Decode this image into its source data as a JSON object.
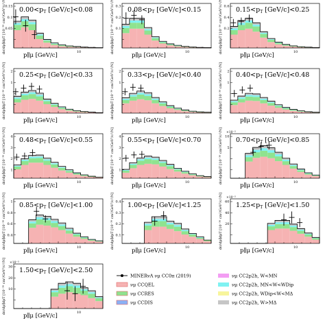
{
  "colors": {
    "ccqel": "#f6b3b3",
    "ccqel_edge": "#e87e7e",
    "ccres": "#8fe38f",
    "ccdis": "#8ab1f5",
    "twop_low": "#f39df3",
    "twop_mid": "#7ff2f2",
    "twop_delta": "#f7f59c",
    "twop_high": "#c6c6c6",
    "total": "#000000"
  },
  "chart_data": [
    {
      "type": "bar",
      "range": "0.00<p_T^μ [GeV/c]<0.08",
      "range_lo": "0.00",
      "range_hi": "0.08",
      "ylim": [
        0,
        0.15
      ],
      "yticks": [
        "0.15",
        "0.1",
        "0.05",
        ""
      ],
      "sci_exponent": "",
      "y_label": "dσ/dp∥dpT [10⁻³⁸ cm²/GeV²/c²/N]",
      "x_label": "p∥μ [GeV/c]",
      "x_tick_label": "10",
      "stacks": {
        "ccqel": [
          0.06,
          0.07,
          0.06,
          0.03,
          0.018,
          0.01,
          0.006,
          0.004,
          0.003,
          0.002,
          0.001,
          0.001
        ],
        "ccres": [
          0.018,
          0.02,
          0.02,
          0.012,
          0.007,
          0.004,
          0.003,
          0.002,
          0.001,
          0.001,
          0.001,
          0
        ],
        "twop": [
          0.012,
          0.015,
          0.014,
          0.008,
          0.004,
          0.003,
          0.002,
          0.001,
          0.001,
          0,
          0,
          0
        ]
      },
      "points": [
        {
          "x": 0.2,
          "y": 0.105,
          "e": 0.025
        },
        {
          "x": 1.2,
          "y": 0.075,
          "e": 0.02
        },
        {
          "x": 2.1,
          "y": 0.045,
          "e": 0.015
        }
      ]
    },
    {
      "type": "bar",
      "range": "0.08<p_T^μ [GeV/c]<0.15",
      "range_lo": "0.08",
      "range_hi": "0.15",
      "ylim": [
        0,
        0.3
      ],
      "yticks": [
        "0.3",
        "0.2",
        "0.1",
        ""
      ],
      "sci_exponent": "",
      "y_label": "dσ/dp∥dpT [10⁻³⁸ cm²/GeV²/c²/N]",
      "x_label": "p∥μ [GeV/c]",
      "x_tick_label": "10",
      "stacks": {
        "ccqel": [
          0.1,
          0.13,
          0.13,
          0.09,
          0.05,
          0.03,
          0.018,
          0.011,
          0.007,
          0.004,
          0.003,
          0.002
        ],
        "ccres": [
          0.035,
          0.04,
          0.04,
          0.028,
          0.016,
          0.009,
          0.006,
          0.004,
          0.002,
          0.002,
          0.001,
          0.001
        ],
        "twop": [
          0.025,
          0.03,
          0.03,
          0.02,
          0.01,
          0.006,
          0.004,
          0.003,
          0.002,
          0.001,
          0,
          0
        ]
      },
      "points": [
        {
          "x": 0.4,
          "y": 0.2,
          "e": 0.04
        },
        {
          "x": 1.2,
          "y": 0.22,
          "e": 0.035
        },
        {
          "x": 2.0,
          "y": 0.19,
          "e": 0.03
        }
      ]
    },
    {
      "type": "bar",
      "range": "0.15<p_T^μ [GeV/c]<0.25",
      "range_lo": "0.15",
      "range_hi": "0.25",
      "ylim": [
        0,
        0.6
      ],
      "yticks": [
        "0.6",
        "0.4",
        "0.2",
        ""
      ],
      "sci_exponent": "",
      "y_label": "dσ/dp∥dpT [10⁻³⁸ cm²/GeV²/c²/N]",
      "x_label": "p∥μ [GeV/c]",
      "x_tick_label": "10",
      "stacks": {
        "ccqel": [
          0.18,
          0.24,
          0.26,
          0.22,
          0.14,
          0.08,
          0.05,
          0.03,
          0.018,
          0.01,
          0.006,
          0.004
        ],
        "ccres": [
          0.06,
          0.07,
          0.08,
          0.07,
          0.05,
          0.03,
          0.018,
          0.011,
          0.007,
          0.004,
          0.003,
          0.002
        ],
        "twop": [
          0.05,
          0.06,
          0.06,
          0.05,
          0.03,
          0.018,
          0.011,
          0.007,
          0.004,
          0.003,
          0.002,
          0.001
        ]
      },
      "points": [
        {
          "x": 0.3,
          "y": 0.34,
          "e": 0.05
        },
        {
          "x": 1.1,
          "y": 0.36,
          "e": 0.05
        },
        {
          "x": 1.9,
          "y": 0.4,
          "e": 0.05
        }
      ]
    },
    {
      "type": "bar",
      "range": "0.25<p_T^μ [GeV/c]<0.33",
      "range_lo": "0.25",
      "range_hi": "0.33",
      "ylim": [
        0,
        2.5
      ],
      "yticks": [
        "2",
        "1",
        "",
        ""
      ],
      "sci_exponent": "",
      "y_label": "dσ/dp∥dpT [10⁻³⁸ cm²/GeV²/c²/N]",
      "x_label": "p∥μ [GeV/c]",
      "x_tick_label": "10",
      "stacks": {
        "ccqel": [
          0.6,
          0.75,
          0.8,
          0.7,
          0.5,
          0.35,
          0.22,
          0.14,
          0.09,
          0.06,
          0.04,
          0.02
        ],
        "ccres": [
          0.2,
          0.25,
          0.27,
          0.24,
          0.17,
          0.12,
          0.08,
          0.05,
          0.03,
          0.02,
          0.01,
          0.01
        ],
        "twop": [
          0.15,
          0.18,
          0.2,
          0.18,
          0.12,
          0.08,
          0.05,
          0.03,
          0.02,
          0.01,
          0.01,
          0
        ]
      },
      "points": [
        {
          "x": 0.2,
          "y": 1.2,
          "e": 0.2
        },
        {
          "x": 1.0,
          "y": 1.4,
          "e": 0.2
        },
        {
          "x": 1.8,
          "y": 1.5,
          "e": 0.2
        },
        {
          "x": 2.6,
          "y": 1.35,
          "e": 0.2
        }
      ]
    },
    {
      "type": "bar",
      "range": "0.33<p_T^μ [GeV/c]<0.40",
      "range_lo": "0.33",
      "range_hi": "0.40",
      "ylim": [
        0,
        2.5
      ],
      "yticks": [
        "2",
        "1",
        "",
        ""
      ],
      "sci_exponent": "",
      "y_label": "dσ/dp∥dpT [10⁻³⁸ cm²/GeV²/c²/N]",
      "x_label": "p∥μ [GeV/c]",
      "x_tick_label": "10",
      "stacks": {
        "ccqel": [
          0.55,
          0.7,
          0.78,
          0.72,
          0.55,
          0.4,
          0.27,
          0.18,
          0.11,
          0.07,
          0.04,
          0.03
        ],
        "ccres": [
          0.18,
          0.23,
          0.26,
          0.24,
          0.19,
          0.14,
          0.09,
          0.06,
          0.04,
          0.02,
          0.02,
          0.01
        ],
        "twop": [
          0.14,
          0.18,
          0.2,
          0.19,
          0.14,
          0.1,
          0.06,
          0.04,
          0.03,
          0.02,
          0.01,
          0.01
        ]
      },
      "points": [
        {
          "x": 0.3,
          "y": 1.2,
          "e": 0.2
        },
        {
          "x": 1.1,
          "y": 1.45,
          "e": 0.2
        },
        {
          "x": 1.9,
          "y": 1.4,
          "e": 0.2
        }
      ]
    },
    {
      "type": "bar",
      "range": "0.40<p_T^μ [GeV/c]<0.48",
      "range_lo": "0.40",
      "range_hi": "0.48",
      "ylim": [
        0,
        2.5
      ],
      "yticks": [
        "2",
        "1",
        "",
        ""
      ],
      "sci_exponent": "",
      "y_label": "dσ/dp∥dpT [10⁻³⁸ cm²/GeV²/c²/N]",
      "x_label": "p∥μ [GeV/c]",
      "x_tick_label": "10",
      "stacks": {
        "ccqel": [
          0.45,
          0.6,
          0.7,
          0.68,
          0.55,
          0.42,
          0.3,
          0.2,
          0.13,
          0.08,
          0.05,
          0.03
        ],
        "ccres": [
          0.16,
          0.2,
          0.23,
          0.23,
          0.19,
          0.15,
          0.1,
          0.07,
          0.05,
          0.03,
          0.02,
          0.01
        ],
        "twop": [
          0.12,
          0.16,
          0.18,
          0.17,
          0.14,
          0.1,
          0.07,
          0.05,
          0.03,
          0.02,
          0.01,
          0.01
        ]
      },
      "points": [
        {
          "x": 0.4,
          "y": 1.1,
          "e": 0.2
        },
        {
          "x": 1.2,
          "y": 1.3,
          "e": 0.2
        },
        {
          "x": 2.0,
          "y": 1.4,
          "e": 0.2
        }
      ]
    },
    {
      "type": "bar",
      "range": "0.48<p_T^μ [GeV/c]<0.55",
      "range_lo": "0.48",
      "range_hi": "0.55",
      "ylim": [
        0,
        4
      ],
      "yticks": [
        "4",
        "3",
        "2",
        "1"
      ],
      "sci_exponent": "",
      "y_label": "dσ/dp∥dpT [10⁻³⁸ cm²/GeV²/c²/N]",
      "x_label": "p∥μ [GeV/c]",
      "x_tick_label": "10",
      "stacks": {
        "ccqel": [
          0.8,
          1.2,
          1.4,
          1.4,
          1.2,
          0.95,
          0.7,
          0.5,
          0.33,
          0.2,
          0.12,
          0.08
        ],
        "ccres": [
          0.25,
          0.35,
          0.4,
          0.42,
          0.37,
          0.3,
          0.23,
          0.16,
          0.1,
          0.07,
          0.04,
          0.02
        ],
        "twop": [
          0.15,
          0.22,
          0.26,
          0.27,
          0.24,
          0.19,
          0.14,
          0.1,
          0.06,
          0.04,
          0.02,
          0.01
        ]
      },
      "points": [
        {
          "x": 0.3,
          "y": 1.9,
          "e": 0.3
        },
        {
          "x": 1.1,
          "y": 2.0,
          "e": 0.3
        },
        {
          "x": 1.9,
          "y": 2.3,
          "e": 0.3
        }
      ]
    },
    {
      "type": "bar",
      "range": "0.55<p_T^μ [GeV/c]<0.70",
      "range_lo": "0.55",
      "range_hi": "0.70",
      "ylim": [
        0,
        4
      ],
      "yticks": [
        "4",
        "3",
        "2",
        "1"
      ],
      "sci_exponent": "",
      "y_label": "dσ/dp∥dpT [10⁻³⁸ cm²/GeV²/c²/N]",
      "x_label": "p∥μ [GeV/c]",
      "x_tick_label": "10",
      "stacks": {
        "ccqel": [
          0.5,
          0.9,
          1.2,
          1.3,
          1.25,
          1.05,
          0.82,
          0.6,
          0.42,
          0.27,
          0.16,
          0.1
        ],
        "ccres": [
          0.18,
          0.3,
          0.38,
          0.42,
          0.4,
          0.34,
          0.27,
          0.19,
          0.13,
          0.08,
          0.05,
          0.03
        ],
        "twop": [
          0.12,
          0.2,
          0.25,
          0.27,
          0.25,
          0.21,
          0.16,
          0.11,
          0.08,
          0.05,
          0.03,
          0.02
        ]
      },
      "points": [
        {
          "x": 0.4,
          "y": 1.8,
          "e": 0.3
        },
        {
          "x": 1.2,
          "y": 2.1,
          "e": 0.3
        },
        {
          "x": 2.0,
          "y": 2.15,
          "e": 0.3
        }
      ]
    },
    {
      "type": "bar",
      "range": "0.70<p_T^μ [GeV/c]<0.85",
      "range_lo": "0.70",
      "range_hi": "0.85",
      "ylim": [
        0,
        12
      ],
      "yticks": [
        "10",
        "5",
        "",
        ""
      ],
      "sci_exponent": "×10⁻³",
      "y_label": "dσ/dp∥dpT [10⁻³⁸ cm²/GeV²/c²/N]",
      "x_label": "p∥μ [GeV/c]",
      "x_tick_label": "10",
      "stacks": {
        "ccqel": [
          0,
          0,
          4.5,
          5.5,
          5.8,
          5.4,
          4.6,
          3.6,
          2.6,
          1.7,
          1.0,
          0.6
        ],
        "ccres": [
          0,
          0,
          1.2,
          1.5,
          1.6,
          1.5,
          1.3,
          1.0,
          0.7,
          0.45,
          0.28,
          0.16
        ],
        "twop": [
          0,
          0,
          1.0,
          1.3,
          1.4,
          1.3,
          1.1,
          0.8,
          0.55,
          0.35,
          0.2,
          0.12
        ]
      },
      "points": [
        {
          "x": 2.3,
          "y": 7.0,
          "e": 1.0
        },
        {
          "x": 3.1,
          "y": 8.6,
          "e": 1.1
        },
        {
          "x": 3.9,
          "y": 8.9,
          "e": 1.1
        }
      ]
    },
    {
      "type": "bar",
      "range": "0.85<p_T^μ [GeV/c]<1.00",
      "range_lo": "0.85",
      "range_hi": "1.00",
      "ylim": [
        0,
        1.0
      ],
      "yticks": [
        "1",
        "0.8",
        "0.6",
        "0.4"
      ],
      "sci_exponent": "",
      "y_label": "dσ/dp∥dpT [10⁻³⁸ cm²/GeV²/c²/N]",
      "x_label": "p∥μ [GeV/c]",
      "x_tick_label": "10",
      "stacks": {
        "ccqel": [
          0,
          0,
          0.35,
          0.42,
          0.4,
          0.36,
          0.3,
          0.22,
          0.15,
          0.1,
          0.06,
          0.04
        ],
        "ccres": [
          0,
          0,
          0.1,
          0.12,
          0.12,
          0.1,
          0.09,
          0.07,
          0.05,
          0.03,
          0.02,
          0.01
        ],
        "twop": [
          0,
          0,
          0.08,
          0.1,
          0.09,
          0.08,
          0.07,
          0.05,
          0.03,
          0.02,
          0.01,
          0.01
        ]
      },
      "points": [
        {
          "x": 2.3,
          "y": 0.72,
          "e": 0.1
        },
        {
          "x": 3.2,
          "y": 0.55,
          "e": 0.08
        }
      ]
    },
    {
      "type": "bar",
      "range": "1.00<p_T^μ [GeV/c]<1.25",
      "range_lo": "1.00",
      "range_hi": "1.25",
      "ylim": [
        0,
        0.4
      ],
      "yticks": [
        "0.4",
        "0.3",
        "0.2",
        "0.1"
      ],
      "sci_exponent": "",
      "y_label": "dσ/dp∥dpT [10⁻³⁸ cm²/GeV²/c²/N]",
      "x_label": "p∥μ [GeV/c]",
      "x_tick_label": "10",
      "stacks": {
        "ccqel": [
          0,
          0,
          0,
          0.12,
          0.15,
          0.15,
          0.13,
          0.11,
          0.08,
          0.06,
          0.04,
          0.02
        ],
        "ccres": [
          0,
          0,
          0,
          0.04,
          0.05,
          0.05,
          0.04,
          0.04,
          0.03,
          0.02,
          0.01,
          0.01
        ],
        "twop": [
          0,
          0,
          0,
          0.03,
          0.04,
          0.04,
          0.03,
          0.03,
          0.02,
          0.01,
          0.01,
          0
        ]
      },
      "points": [
        {
          "x": 3.3,
          "y": 0.2,
          "e": 0.04
        },
        {
          "x": 4.2,
          "y": 0.25,
          "e": 0.04
        }
      ]
    },
    {
      "type": "bar",
      "range": "1.25<p_T^μ [GeV/c]<1.50",
      "range_lo": "1.25",
      "range_hi": "1.50",
      "ylim": [
        0,
        60
      ],
      "yticks": [
        "60",
        "40",
        "20",
        ""
      ],
      "sci_exponent": "×10⁻³",
      "y_label": "dσ/dp∥dpT [10⁻³⁸ cm²/GeV²/c²/N]",
      "x_label": "p∥μ [GeV/c]",
      "x_tick_label": "10",
      "stacks": {
        "ccqel": [
          0,
          0,
          0,
          0,
          0,
          18,
          20,
          20,
          17,
          13,
          9,
          5
        ],
        "ccres": [
          0,
          0,
          0,
          0,
          0,
          5,
          6,
          6,
          5,
          4,
          3,
          2
        ],
        "twop": [
          0,
          0,
          0,
          0,
          0,
          4,
          5,
          5,
          4,
          3,
          2,
          1
        ]
      },
      "points": [
        {
          "x": 5.4,
          "y": 32,
          "e": 8
        },
        {
          "x": 6.2,
          "y": 35,
          "e": 8
        },
        {
          "x": 7.0,
          "y": 28,
          "e": 6
        }
      ]
    },
    {
      "type": "bar",
      "range": "1.50<p_T^μ [GeV/c]<2.50",
      "range_lo": "1.50",
      "range_hi": "2.50",
      "ylim": [
        0,
        30
      ],
      "yticks": [
        "30",
        "20",
        "10",
        ""
      ],
      "sci_exponent": "×10⁻³",
      "y_label": "dσ/dp∥dpT [10⁻³⁸ cm²/GeV²/c²/N]",
      "x_label": "p∥μ [GeV/c]",
      "x_tick_label": "10",
      "stacks": {
        "ccqel": [
          0,
          0,
          0,
          0,
          0,
          8,
          10,
          11,
          10,
          9,
          7,
          5
        ],
        "ccres": [
          0,
          0,
          0,
          0,
          0,
          3,
          4,
          4,
          4,
          3,
          3,
          2
        ],
        "twop": [
          0,
          0,
          0,
          0,
          0,
          2,
          3,
          3,
          3,
          2,
          2,
          1
        ]
      },
      "points": [
        {
          "x": 5.4,
          "y": 12,
          "e": 6
        },
        {
          "x": 6.2,
          "y": 10,
          "e": 5
        },
        {
          "x": 7.0,
          "y": 15,
          "e": 5
        }
      ]
    }
  ],
  "legend": {
    "left": [
      {
        "key": "data",
        "label": "MINERvA νμ CC0π (2019)"
      },
      {
        "key": "ccqel",
        "label": "νμ CCQEL"
      },
      {
        "key": "ccres",
        "label": "νμ CCRES"
      },
      {
        "key": "ccdis",
        "label": "νμ CCDIS"
      }
    ],
    "right": [
      {
        "key": "twop_low",
        "label": "νμ CC2p2h, W<MN"
      },
      {
        "key": "twop_mid",
        "label": "νμ CC2p2h, MN<W<WDip"
      },
      {
        "key": "twop_delta",
        "label": "νμ CC2p2h, WDip<W<MΔ"
      },
      {
        "key": "twop_high",
        "label": "νμ CC2p2h, W>MΔ"
      }
    ]
  }
}
